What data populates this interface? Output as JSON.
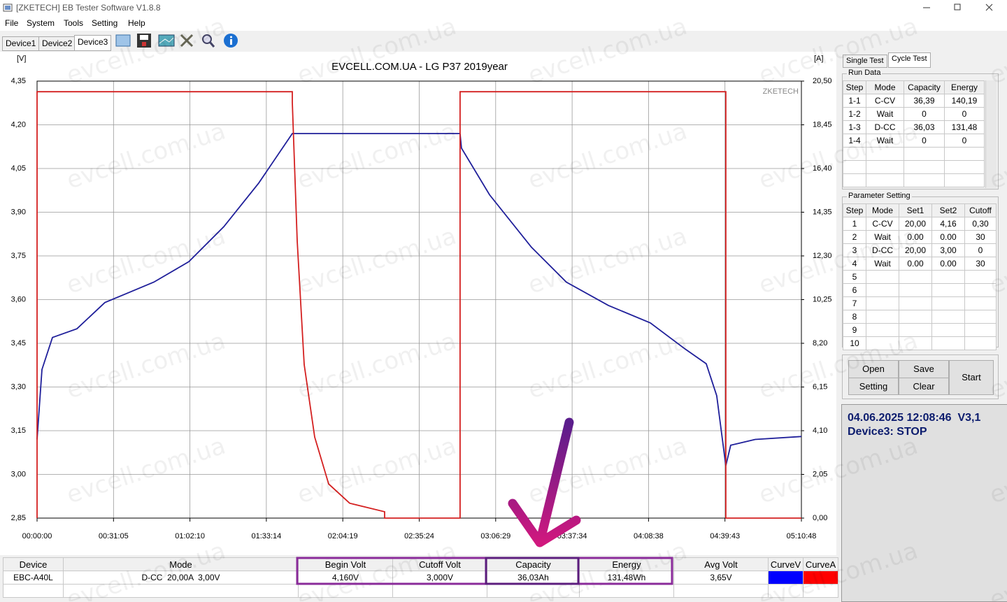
{
  "window": {
    "title": "[ZKETECH] EB Tester Software V1.8.8"
  },
  "menu": [
    "File",
    "System",
    "Tools",
    "Setting",
    "Help"
  ],
  "device_tabs": [
    "Device1",
    "Device2",
    "Device3"
  ],
  "watermark": "evcell.com.ua",
  "chart_data": {
    "type": "line",
    "title": "EVCELL.COM.UA - LG P37 2019year",
    "y_label": "[V]",
    "y2_label": "[A]",
    "brand": "ZKETECH",
    "grid": true,
    "xlim": [
      0,
      18648
    ],
    "xticks": [
      {
        "value": 0,
        "label": "00:00:00"
      },
      {
        "value": 1865,
        "label": "00:31:05"
      },
      {
        "value": 3730,
        "label": "01:02:10"
      },
      {
        "value": 5594,
        "label": "01:33:14"
      },
      {
        "value": 7459,
        "label": "02:04:19"
      },
      {
        "value": 9324,
        "label": "02:35:24"
      },
      {
        "value": 11189,
        "label": "03:06:29"
      },
      {
        "value": 13054,
        "label": "03:37:34"
      },
      {
        "value": 14918,
        "label": "04:08:38"
      },
      {
        "value": 16783,
        "label": "04:39:43"
      },
      {
        "value": 18648,
        "label": "05:10:48"
      }
    ],
    "ylim": [
      2.85,
      4.35
    ],
    "yticks": [
      {
        "value": 4.35,
        "label": "4,35"
      },
      {
        "value": 4.2,
        "label": "4,20"
      },
      {
        "value": 4.05,
        "label": "4,05"
      },
      {
        "value": 3.9,
        "label": "3,90"
      },
      {
        "value": 3.75,
        "label": "3,75"
      },
      {
        "value": 3.6,
        "label": "3,60"
      },
      {
        "value": 3.45,
        "label": "3,45"
      },
      {
        "value": 3.3,
        "label": "3,30"
      },
      {
        "value": 3.15,
        "label": "3,15"
      },
      {
        "value": 3.0,
        "label": "3,00"
      },
      {
        "value": 2.85,
        "label": "2,85"
      }
    ],
    "y2lim": [
      0,
      20.5
    ],
    "y2ticks": [
      {
        "value": 20.5,
        "label": "20,50"
      },
      {
        "value": 18.45,
        "label": "18,45"
      },
      {
        "value": 16.4,
        "label": "16,40"
      },
      {
        "value": 14.35,
        "label": "14,35"
      },
      {
        "value": 12.3,
        "label": "12,30"
      },
      {
        "value": 10.25,
        "label": "10,25"
      },
      {
        "value": 8.2,
        "label": "8,20"
      },
      {
        "value": 6.15,
        "label": "6,15"
      },
      {
        "value": 4.1,
        "label": "4,10"
      },
      {
        "value": 2.05,
        "label": "2,05"
      },
      {
        "value": 0,
        "label": "0,00"
      }
    ],
    "series": [
      {
        "name": "CurveV",
        "color": "#0000ff",
        "line_color": "#1f1f9a",
        "axis": "y",
        "x": [
          0,
          119,
          375,
          972,
          1655,
          2167,
          2849,
          3702,
          4555,
          5408,
          6227,
          10321,
          10355,
          11038,
          12061,
          12914,
          13938,
          14961,
          15814,
          16326,
          16582,
          16804,
          16923,
          17520,
          18648
        ],
        "values": [
          3.12,
          3.36,
          3.47,
          3.5,
          3.59,
          3.62,
          3.66,
          3.73,
          3.85,
          4.0,
          4.17,
          4.17,
          4.12,
          3.96,
          3.78,
          3.66,
          3.58,
          3.52,
          3.43,
          3.38,
          3.27,
          3.03,
          3.1,
          3.12,
          3.13
        ]
      },
      {
        "name": "CurveA",
        "color": "#ff0000",
        "line_color": "#d42020",
        "axis": "y2",
        "x": [
          0,
          0,
          6227,
          6227,
          6346,
          6517,
          6773,
          7114,
          7626,
          8479,
          8479,
          10321,
          10321,
          16804,
          16804,
          18648
        ],
        "values": [
          0,
          20.0,
          20.0,
          19.5,
          13.0,
          7.2,
          3.8,
          1.6,
          0.7,
          0.3,
          0,
          0,
          20.0,
          20.0,
          0,
          0
        ]
      }
    ]
  },
  "side_tabs": [
    "Single Test",
    "Cycle Test"
  ],
  "run_data": {
    "title": "Run Data",
    "columns": [
      "Step",
      "Mode",
      "Capacity",
      "Energy"
    ],
    "rows": [
      [
        "1-1",
        "C-CV",
        "36,39",
        "140,19"
      ],
      [
        "1-2",
        "Wait",
        "0",
        "0"
      ],
      [
        "1-3",
        "D-CC",
        "36,03",
        "131,48"
      ],
      [
        "1-4",
        "Wait",
        "0",
        "0"
      ]
    ]
  },
  "parameter_setting": {
    "title": "Parameter Setting",
    "columns": [
      "Step",
      "Mode",
      "Set1",
      "Set2",
      "Cutoff"
    ],
    "rows": [
      [
        "1",
        "C-CV",
        "20,00",
        "4,16",
        "0,30"
      ],
      [
        "2",
        "Wait",
        "0.00",
        "0.00",
        "30"
      ],
      [
        "3",
        "D-CC",
        "20,00",
        "3,00",
        "0"
      ],
      [
        "4",
        "Wait",
        "0.00",
        "0.00",
        "30"
      ],
      [
        "5"
      ],
      [
        "6"
      ],
      [
        "7"
      ],
      [
        "8"
      ],
      [
        "9"
      ],
      [
        "10"
      ]
    ]
  },
  "buttons": {
    "open": "Open",
    "save": "Save",
    "setting": "Setting",
    "clear": "Clear",
    "start": "Start"
  },
  "status": {
    "datetime": "04.06.2025 12:08:46  V3,1",
    "device_state": "Device3: STOP"
  },
  "summary": {
    "columns": [
      "Device",
      "Mode",
      "Begin Volt",
      "Cutoff Volt",
      "Capacity",
      "Energy",
      "Avg Volt"
    ],
    "row": [
      "EBC-A40L",
      "D-CC  20,00A  3,00V",
      "4,160V",
      "3,000V",
      "36,03Ah",
      "131,48Wh",
      "3,65V"
    ]
  }
}
